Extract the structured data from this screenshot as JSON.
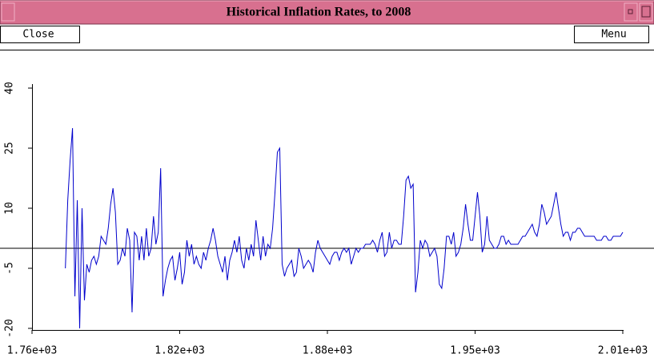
{
  "window": {
    "title": "Historical Inflation Rates, to 2008",
    "buttons": [
      "Close",
      "Menu"
    ]
  },
  "chart_data": {
    "type": "line",
    "color": "#0000cc",
    "x": [
      1774,
      1775,
      1776,
      1777,
      1778,
      1779,
      1780,
      1781,
      1782,
      1783,
      1784,
      1785,
      1786,
      1787,
      1788,
      1789,
      1790,
      1791,
      1792,
      1793,
      1794,
      1795,
      1796,
      1797,
      1798,
      1799,
      1800,
      1801,
      1802,
      1803,
      1804,
      1805,
      1806,
      1807,
      1808,
      1809,
      1810,
      1811,
      1812,
      1813,
      1814,
      1815,
      1816,
      1817,
      1818,
      1819,
      1820,
      1821,
      1822,
      1823,
      1824,
      1825,
      1826,
      1827,
      1828,
      1829,
      1830,
      1831,
      1832,
      1833,
      1834,
      1835,
      1836,
      1837,
      1838,
      1839,
      1840,
      1841,
      1842,
      1843,
      1844,
      1845,
      1846,
      1847,
      1848,
      1849,
      1850,
      1851,
      1852,
      1853,
      1854,
      1855,
      1856,
      1857,
      1858,
      1859,
      1860,
      1861,
      1862,
      1863,
      1864,
      1865,
      1866,
      1867,
      1868,
      1869,
      1870,
      1871,
      1872,
      1873,
      1874,
      1875,
      1876,
      1877,
      1878,
      1879,
      1880,
      1881,
      1882,
      1883,
      1884,
      1885,
      1886,
      1887,
      1888,
      1889,
      1890,
      1891,
      1892,
      1893,
      1894,
      1895,
      1896,
      1897,
      1898,
      1899,
      1900,
      1901,
      1902,
      1903,
      1904,
      1905,
      1906,
      1907,
      1908,
      1909,
      1910,
      1911,
      1912,
      1913,
      1914,
      1915,
      1916,
      1917,
      1918,
      1919,
      1920,
      1921,
      1922,
      1923,
      1924,
      1925,
      1926,
      1927,
      1928,
      1929,
      1930,
      1931,
      1932,
      1933,
      1934,
      1935,
      1936,
      1937,
      1938,
      1939,
      1940,
      1941,
      1942,
      1943,
      1944,
      1945,
      1946,
      1947,
      1948,
      1949,
      1950,
      1951,
      1952,
      1953,
      1954,
      1955,
      1956,
      1957,
      1958,
      1959,
      1960,
      1961,
      1962,
      1963,
      1964,
      1965,
      1966,
      1967,
      1968,
      1969,
      1970,
      1971,
      1972,
      1973,
      1974,
      1975,
      1976,
      1977,
      1978,
      1979,
      1980,
      1981,
      1982,
      1983,
      1984,
      1985,
      1986,
      1987,
      1988,
      1989,
      1990,
      1991,
      1992,
      1993,
      1994,
      1995,
      1996,
      1997,
      1998,
      1999,
      2000,
      2001,
      2002,
      2003,
      2004,
      2005,
      2006,
      2007,
      2008
    ],
    "values": [
      -5,
      12,
      22,
      30,
      -12,
      12,
      -20,
      10,
      -13,
      -4,
      -6,
      -3,
      -2,
      -4,
      -2,
      3,
      2,
      1,
      5,
      11,
      15,
      9,
      -4,
      -3,
      0,
      -2,
      5,
      2,
      -16,
      4,
      3,
      -3,
      3,
      -3,
      5,
      -2,
      0,
      8,
      1,
      4,
      20,
      -12,
      -8,
      -5,
      -3,
      -2,
      -8,
      -5,
      -1,
      -9,
      -6,
      2,
      -2,
      1,
      -4,
      -2,
      -4,
      -5,
      -1,
      -3,
      0,
      2,
      5,
      2,
      -2,
      -4,
      -6,
      -2,
      -8,
      -3,
      -1,
      2,
      -1,
      3,
      -3,
      -5,
      0,
      -3,
      1,
      -2,
      7,
      2,
      -3,
      3,
      -2,
      1,
      0,
      5,
      14,
      24,
      25,
      -4,
      -7,
      -5,
      -4,
      -3,
      -7,
      -6,
      0,
      -2,
      -5,
      -4,
      -3,
      -4,
      -6,
      -1,
      2,
      0,
      -1,
      -2,
      -3,
      -4,
      -2,
      -1,
      -1,
      -3,
      -1,
      0,
      -1,
      0,
      -4,
      -2,
      0,
      -1,
      0,
      0,
      1,
      1,
      1,
      2,
      1,
      -1,
      2,
      4,
      -2,
      -1,
      4,
      0,
      2,
      2,
      1,
      1,
      8,
      17,
      18,
      15,
      16,
      -11,
      -6,
      2,
      0,
      2,
      1,
      -2,
      -1,
      0,
      -2,
      -9,
      -10,
      -5,
      3,
      3,
      1,
      4,
      -2,
      -1,
      1,
      5,
      11,
      6,
      2,
      2,
      8,
      14,
      8,
      -1,
      1,
      8,
      2,
      1,
      0,
      0,
      1,
      3,
      3,
      1,
      2,
      1,
      1,
      1,
      1,
      2,
      3,
      3,
      4,
      5,
      6,
      4,
      3,
      6,
      11,
      9,
      6,
      7,
      8,
      11,
      14,
      10,
      6,
      3,
      4,
      4,
      2,
      4,
      4,
      5,
      5,
      4,
      3,
      3,
      3,
      3,
      3,
      2,
      2,
      2,
      3,
      3,
      2,
      2,
      3,
      3,
      3,
      3,
      4
    ],
    "xlim": [
      1760,
      2008
    ],
    "ylim": [
      -20,
      40
    ],
    "xticks": [
      {
        "value": 1760,
        "label": "1.76e+03"
      },
      {
        "value": 1822,
        "label": "1.82e+03"
      },
      {
        "value": 1884,
        "label": "1.88e+03"
      },
      {
        "value": 1946,
        "label": "1.95e+03"
      },
      {
        "value": 2008,
        "label": "2.01e+03"
      }
    ],
    "yticks": [
      40,
      25,
      10,
      -5,
      -20
    ]
  }
}
